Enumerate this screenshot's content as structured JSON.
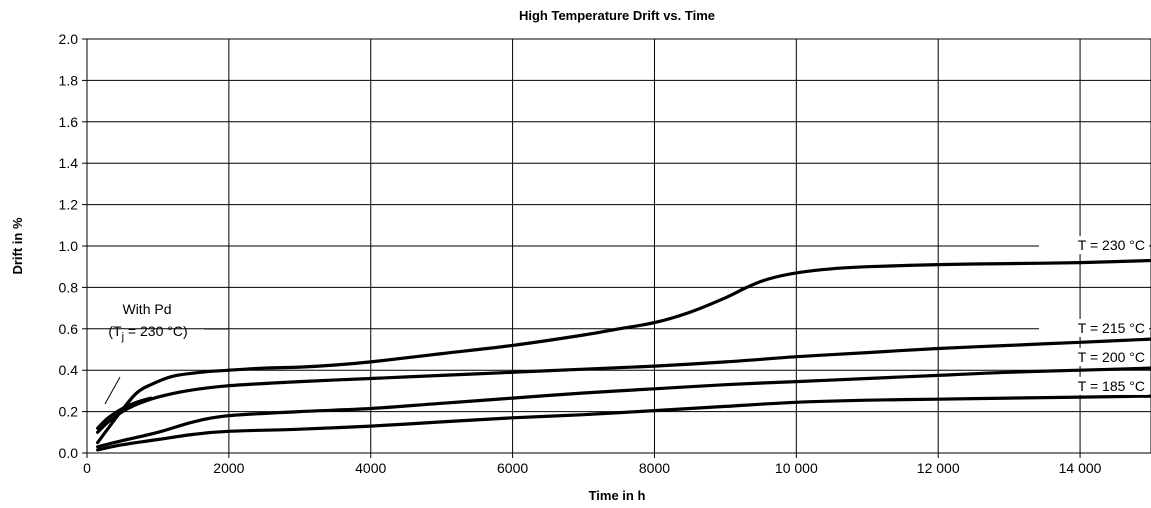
{
  "chart_data": {
    "type": "line",
    "title": "High Temperature Drift vs. Time",
    "xlabel": "Time in h",
    "ylabel": "Drift in %",
    "xlim": [
      0,
      15000
    ],
    "ylim": [
      0,
      2.0
    ],
    "xticks": [
      0,
      2000,
      4000,
      6000,
      8000,
      10000,
      12000,
      14000
    ],
    "xtick_labels": [
      "0",
      "2000",
      "4000",
      "6000",
      "8000",
      "10 000",
      "12 000",
      "14 000"
    ],
    "yticks": [
      0,
      0.2,
      0.4,
      0.6,
      0.8,
      1.0,
      1.2,
      1.4,
      1.6,
      1.8,
      2.0
    ],
    "ytick_labels": [
      "0.0",
      "0.2",
      "0.4",
      "0.6",
      "0.8",
      "1.0",
      "1.2",
      "1.4",
      "1.6",
      "1.8",
      "2.0"
    ],
    "grid": true,
    "colors": {
      "line": "#000000",
      "grid": "#000000",
      "background": "#ffffff"
    },
    "series": [
      {
        "label": "T = 230 °C",
        "x": [
          150,
          300,
          500,
          700,
          900,
          1200,
          1600,
          2000,
          2500,
          3000,
          3500,
          4000,
          5000,
          6000,
          7000,
          7500,
          8000,
          8500,
          9000,
          9300,
          9600,
          10000,
          10500,
          11000,
          12000,
          13000,
          14000,
          15000
        ],
        "y": [
          0.05,
          0.12,
          0.21,
          0.29,
          0.33,
          0.37,
          0.39,
          0.4,
          0.41,
          0.415,
          0.425,
          0.44,
          0.48,
          0.52,
          0.57,
          0.6,
          0.63,
          0.68,
          0.75,
          0.8,
          0.84,
          0.87,
          0.89,
          0.9,
          0.91,
          0.915,
          0.92,
          0.93
        ]
      },
      {
        "label": "T = 215 °C",
        "x": [
          150,
          300,
          500,
          700,
          1000,
          1400,
          2000,
          3000,
          4000,
          5000,
          6000,
          7000,
          8000,
          9000,
          10000,
          11000,
          12000,
          13000,
          14000,
          15000
        ],
        "y": [
          0.1,
          0.15,
          0.2,
          0.235,
          0.27,
          0.3,
          0.325,
          0.345,
          0.36,
          0.375,
          0.39,
          0.405,
          0.42,
          0.44,
          0.465,
          0.485,
          0.505,
          0.52,
          0.535,
          0.55
        ]
      },
      {
        "label": "T = 200 °C",
        "x": [
          150,
          500,
          1000,
          1500,
          2000,
          3000,
          4000,
          5000,
          6000,
          7000,
          8000,
          9000,
          10000,
          11000,
          12000,
          13000,
          14000,
          15000
        ],
        "y": [
          0.03,
          0.06,
          0.1,
          0.15,
          0.18,
          0.2,
          0.215,
          0.24,
          0.265,
          0.29,
          0.31,
          0.33,
          0.345,
          0.36,
          0.375,
          0.39,
          0.4,
          0.41
        ]
      },
      {
        "label": "T = 185 °C",
        "x": [
          150,
          500,
          1000,
          1500,
          2000,
          3000,
          4000,
          5000,
          6000,
          7000,
          8000,
          9000,
          10000,
          11000,
          12000,
          13000,
          14000,
          15000
        ],
        "y": [
          0.015,
          0.04,
          0.065,
          0.09,
          0.105,
          0.115,
          0.13,
          0.15,
          0.17,
          0.185,
          0.205,
          0.225,
          0.245,
          0.255,
          0.26,
          0.265,
          0.27,
          0.275
        ]
      },
      {
        "label": "With Pd (Tj = 230 °C)",
        "x": [
          150,
          300,
          500,
          700,
          900
        ],
        "y": [
          0.12,
          0.17,
          0.215,
          0.245,
          0.265
        ]
      }
    ],
    "annotation": {
      "line1": "With Pd",
      "line2_pre": "(T",
      "line2_sub": "j",
      "line2_post": " = 230 °C)"
    }
  }
}
